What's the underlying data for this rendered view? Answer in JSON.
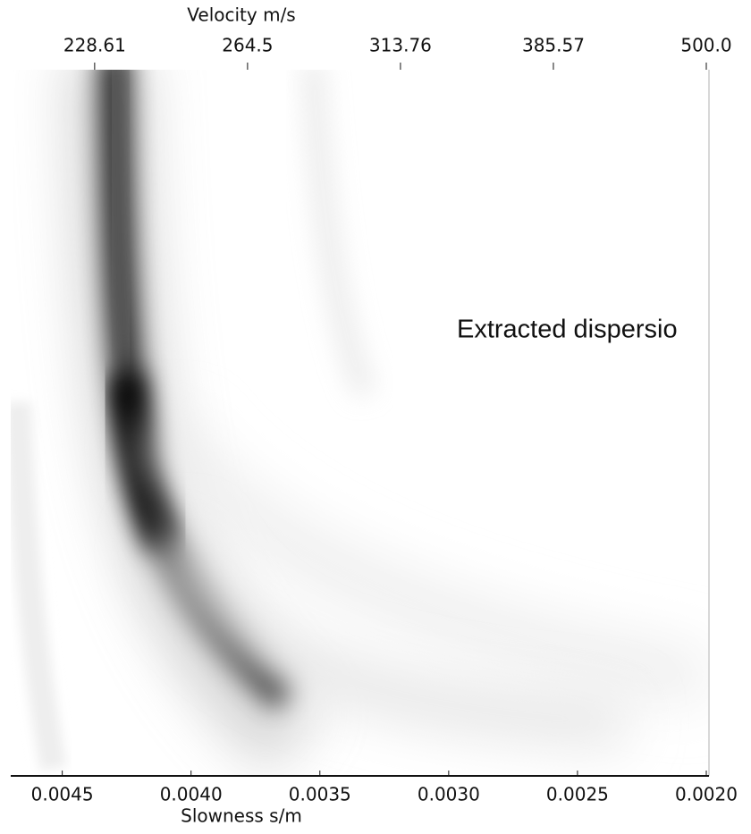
{
  "chart_data": {
    "type": "image",
    "xlabel": "Slowness s/m",
    "x2label": "Velocity m/s",
    "x2scale": "reciprocal",
    "xlim": [
      0.0047,
      0.002
    ],
    "xticks": [
      0.0045,
      {
        "value": 0.004,
        "label": "0.0040"
      },
      0.0035,
      {
        "value": 0.003,
        "label": "0.0030"
      },
      0.0025,
      {
        "value": 0.002,
        "label": "0.0020"
      }
    ],
    "x2ticks": [
      228.61,
      264.5,
      313.76,
      385.57,
      {
        "value": 500,
        "label": "500.0"
      }
    ],
    "annotation": "Extracted dispersio"
  }
}
